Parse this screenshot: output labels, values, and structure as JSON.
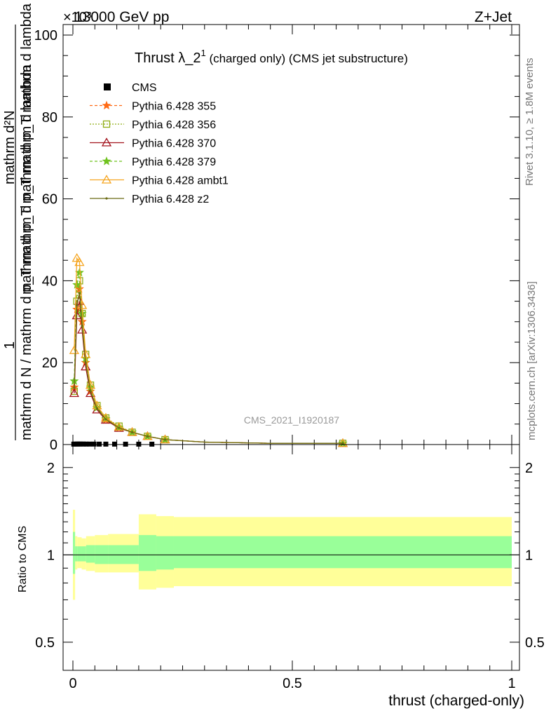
{
  "header": {
    "left": "13000 GeV pp",
    "right": "Z+Jet",
    "exponent": "×10³",
    "side_top": "Rivet 3.1.10, ≥ 1.8M events",
    "side_bottom": "mcplots.cern.ch [arXiv:1306.3436]",
    "watermark": "CMS_2021_I1920187"
  },
  "chart_data": [
    {
      "type": "line",
      "title": "Thrust λ_2¹ (charged only) (CMS jet substructure)",
      "title_main": "Thrust λ_2",
      "title_sup": "1",
      "title_rest": " (charged only) (CMS jet substructure)",
      "ylabel_lines": [
        "1",
        "mathrm d N / mathrm d p_T mathrm d p_T mathrm d lambda",
        "mathrm d^2N"
      ],
      "ylabel_numerator": "mathrm d²N",
      "ylabel_denominator_top": "mathrm d p_T mathrm d p_T mathrm d lambda",
      "ylabel_denominator": "mathrm d N / mathrm d p_T mathrm d p_T mathrm d lambda",
      "ylabel_one": "1",
      "xlim": [
        0,
        1
      ],
      "ylim": [
        0,
        100
      ],
      "yticks": [
        "0",
        "20",
        "40",
        "60",
        "80",
        "100"
      ],
      "legend_position": "top-left",
      "legend": [
        "CMS",
        "Pythia 6.428 355",
        "Pythia 6.428 356",
        "Pythia 6.428 370",
        "Pythia 6.428 379",
        "Pythia 6.428 ambt1",
        "Pythia 6.428 z2"
      ],
      "cms": {
        "name": "CMS",
        "x": [
          0.002,
          0.006,
          0.01,
          0.014,
          0.018,
          0.024,
          0.03,
          0.038,
          0.048,
          0.06,
          0.075,
          0.095,
          0.12,
          0.15,
          0.18
        ],
        "y": [
          0.02,
          0.03,
          0.04,
          0.04,
          0.04,
          0.04,
          0.03,
          0.03,
          0.03,
          0.02,
          0.02,
          0.02,
          0.01,
          0.01,
          0.01
        ]
      },
      "series": [
        {
          "name": "Pythia 6.428 355",
          "color": "#ff6a14",
          "dash": "4,3",
          "marker": "star",
          "x": [
            0.003,
            0.009,
            0.015,
            0.021,
            0.029,
            0.04,
            0.055,
            0.075,
            0.105,
            0.135,
            0.17,
            0.21,
            0.3,
            0.45,
            0.615
          ],
          "y": [
            14,
            33,
            38,
            30,
            20,
            13,
            9,
            6,
            4,
            3,
            2,
            1.2,
            0.6,
            0.3,
            0.3
          ]
        },
        {
          "name": "Pythia 6.428 356",
          "color": "#8fad14",
          "dash": "2,2",
          "marker": "square",
          "x": [
            0.003,
            0.009,
            0.015,
            0.021,
            0.029,
            0.04,
            0.055,
            0.075,
            0.105,
            0.135,
            0.17,
            0.21,
            0.3,
            0.45,
            0.615
          ],
          "y": [
            13,
            35,
            40,
            32,
            22,
            14.5,
            9.5,
            6.5,
            4.5,
            3,
            2,
            1.2,
            0.6,
            0.3,
            0.3
          ]
        },
        {
          "name": "Pythia 6.428 370",
          "color": "#a3141e",
          "dash": "",
          "marker": "triangle",
          "x": [
            0.003,
            0.009,
            0.015,
            0.021,
            0.029,
            0.04,
            0.055,
            0.075,
            0.105,
            0.135,
            0.17,
            0.21,
            0.3,
            0.45,
            0.615
          ],
          "y": [
            12.5,
            31.5,
            35,
            28,
            19,
            12.5,
            8.5,
            6,
            4,
            3,
            2,
            1.2,
            0.6,
            0.3,
            0.3
          ]
        },
        {
          "name": "Pythia 6.428 379",
          "color": "#6fc21e",
          "dash": "4,3",
          "marker": "star",
          "x": [
            0.003,
            0.009,
            0.015,
            0.021,
            0.029,
            0.04,
            0.055,
            0.075,
            0.105,
            0.135,
            0.17,
            0.21,
            0.3,
            0.45,
            0.615
          ],
          "y": [
            15.5,
            39,
            42,
            32,
            21,
            14,
            9,
            6.3,
            4.2,
            3,
            2,
            1.2,
            0.6,
            0.3,
            0.3
          ]
        },
        {
          "name": "Pythia 6.428 ambt1",
          "color": "#f5a623",
          "dash": "",
          "marker": "triangle",
          "x": [
            0.003,
            0.009,
            0.015,
            0.021,
            0.029,
            0.04,
            0.055,
            0.075,
            0.105,
            0.135,
            0.17,
            0.21,
            0.3,
            0.45,
            0.615
          ],
          "y": [
            23,
            45.5,
            44.5,
            34,
            22,
            14.5,
            9.5,
            6.5,
            4.3,
            3,
            2,
            1.2,
            0.6,
            0.3,
            0.3
          ]
        },
        {
          "name": "Pythia 6.428 z2",
          "color": "#6b6b14",
          "dash": "",
          "marker": "dot",
          "x": [
            0.003,
            0.009,
            0.015,
            0.021,
            0.029,
            0.04,
            0.055,
            0.075,
            0.105,
            0.135,
            0.17,
            0.21,
            0.3,
            0.45,
            0.615
          ],
          "y": [
            14,
            34,
            37,
            29,
            20,
            13,
            8.8,
            6.2,
            4.1,
            3,
            2,
            1.2,
            0.6,
            0.3,
            0.3
          ]
        }
      ]
    },
    {
      "type": "area",
      "ylabel": "Ratio to CMS",
      "xlabel": "thrust (charged-only)",
      "xlim": [
        0,
        1
      ],
      "ylim": [
        0.4,
        2.4
      ],
      "log_y": true,
      "yticks": [
        "0.5",
        "1",
        "2"
      ],
      "xticks": [
        "0",
        "0.5",
        "1"
      ],
      "reference_line": 1,
      "bands": {
        "edges": [
          0.0,
          0.005,
          0.01,
          0.02,
          0.03,
          0.05,
          0.08,
          0.15,
          0.19,
          0.23,
          1.0
        ],
        "outer_low": [
          0.7,
          0.89,
          0.9,
          0.89,
          0.88,
          0.87,
          0.87,
          0.76,
          0.77,
          0.78
        ],
        "outer_high": [
          1.43,
          1.16,
          1.15,
          1.14,
          1.16,
          1.17,
          1.18,
          1.38,
          1.36,
          1.35
        ],
        "inner_low": [
          0.86,
          0.95,
          0.95,
          0.95,
          0.94,
          0.93,
          0.93,
          0.88,
          0.89,
          0.9
        ],
        "inner_high": [
          1.2,
          1.07,
          1.07,
          1.07,
          1.08,
          1.08,
          1.08,
          1.17,
          1.16,
          1.16
        ],
        "outer_color": "#ffff99",
        "inner_color": "#99ff99"
      }
    }
  ]
}
